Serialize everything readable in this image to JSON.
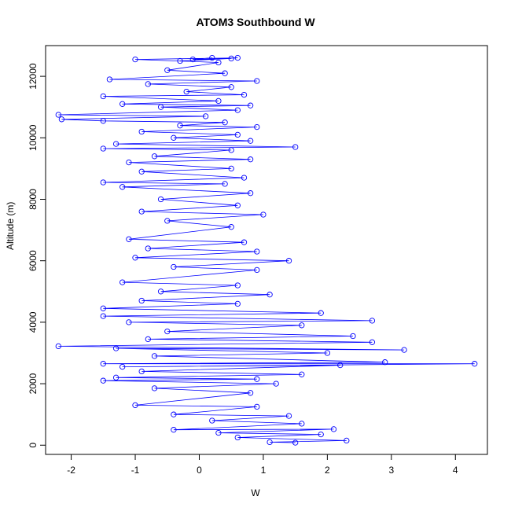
{
  "chart_data": {
    "type": "line",
    "title": "ATOM3 Southbound W",
    "xlabel": "W",
    "ylabel": "Altitude (m)",
    "xlim": [
      -2.4,
      4.5
    ],
    "ylim": [
      -300,
      13000
    ],
    "xticks": [
      "-2",
      "-1",
      "0",
      "1",
      "2",
      "3",
      "4"
    ],
    "yticks": [
      "0",
      "2000",
      "4000",
      "6000",
      "8000",
      "10000",
      "12000"
    ],
    "series": [
      {
        "color": "#0000ff",
        "marker": "open-circle",
        "points": [
          [
            0.2,
            12600
          ],
          [
            -0.1,
            12550
          ],
          [
            0.5,
            12580
          ],
          [
            -0.3,
            12500
          ],
          [
            0.6,
            12600
          ],
          [
            -1.0,
            12550
          ],
          [
            0.3,
            12450
          ],
          [
            -0.5,
            12200
          ],
          [
            0.4,
            12100
          ],
          [
            -1.4,
            11900
          ],
          [
            0.9,
            11850
          ],
          [
            -0.8,
            11750
          ],
          [
            0.5,
            11650
          ],
          [
            -0.2,
            11500
          ],
          [
            0.7,
            11400
          ],
          [
            -1.5,
            11350
          ],
          [
            0.3,
            11200
          ],
          [
            -1.2,
            11100
          ],
          [
            0.8,
            11050
          ],
          [
            -0.6,
            11000
          ],
          [
            0.6,
            10900
          ],
          [
            -2.2,
            10750
          ],
          [
            0.1,
            10700
          ],
          [
            -2.15,
            10600
          ],
          [
            -1.5,
            10550
          ],
          [
            0.4,
            10500
          ],
          [
            -0.3,
            10400
          ],
          [
            0.9,
            10350
          ],
          [
            -0.9,
            10200
          ],
          [
            0.6,
            10100
          ],
          [
            -0.4,
            10000
          ],
          [
            0.8,
            9900
          ],
          [
            -1.3,
            9800
          ],
          [
            1.5,
            9700
          ],
          [
            -1.5,
            9650
          ],
          [
            0.5,
            9600
          ],
          [
            -0.7,
            9400
          ],
          [
            0.8,
            9300
          ],
          [
            -1.1,
            9200
          ],
          [
            0.5,
            9000
          ],
          [
            -0.9,
            8900
          ],
          [
            0.7,
            8700
          ],
          [
            -1.5,
            8550
          ],
          [
            0.4,
            8500
          ],
          [
            -1.2,
            8400
          ],
          [
            0.8,
            8200
          ],
          [
            -0.6,
            8000
          ],
          [
            0.6,
            7800
          ],
          [
            -0.9,
            7600
          ],
          [
            1.0,
            7500
          ],
          [
            -0.5,
            7300
          ],
          [
            0.5,
            7100
          ],
          [
            -1.1,
            6700
          ],
          [
            0.7,
            6600
          ],
          [
            -0.8,
            6400
          ],
          [
            0.9,
            6300
          ],
          [
            -1.0,
            6100
          ],
          [
            1.4,
            6000
          ],
          [
            -0.4,
            5800
          ],
          [
            0.9,
            5700
          ],
          [
            -1.2,
            5300
          ],
          [
            0.6,
            5200
          ],
          [
            -0.6,
            5000
          ],
          [
            1.1,
            4900
          ],
          [
            -0.9,
            4700
          ],
          [
            0.6,
            4600
          ],
          [
            -1.5,
            4450
          ],
          [
            1.9,
            4300
          ],
          [
            -1.5,
            4200
          ],
          [
            2.7,
            4050
          ],
          [
            -1.1,
            4000
          ],
          [
            1.6,
            3900
          ],
          [
            -0.5,
            3700
          ],
          [
            2.4,
            3550
          ],
          [
            -0.8,
            3450
          ],
          [
            2.7,
            3350
          ],
          [
            -2.2,
            3220
          ],
          [
            3.2,
            3100
          ],
          [
            -1.3,
            3150
          ],
          [
            2.0,
            3000
          ],
          [
            -0.7,
            2900
          ],
          [
            2.9,
            2700
          ],
          [
            -1.5,
            2650
          ],
          [
            4.3,
            2650
          ],
          [
            -1.2,
            2550
          ],
          [
            2.2,
            2600
          ],
          [
            -0.9,
            2400
          ],
          [
            1.6,
            2300
          ],
          [
            -1.3,
            2200
          ],
          [
            0.9,
            2150
          ],
          [
            -1.5,
            2100
          ],
          [
            1.2,
            2000
          ],
          [
            -0.7,
            1850
          ],
          [
            0.8,
            1700
          ],
          [
            -1.0,
            1300
          ],
          [
            0.9,
            1250
          ],
          [
            -0.4,
            1000
          ],
          [
            1.4,
            950
          ],
          [
            0.2,
            800
          ],
          [
            1.6,
            700
          ],
          [
            -0.4,
            500
          ],
          [
            2.1,
            520
          ],
          [
            0.3,
            400
          ],
          [
            1.9,
            350
          ],
          [
            0.6,
            250
          ],
          [
            2.3,
            150
          ],
          [
            1.1,
            100
          ],
          [
            1.5,
            80
          ]
        ]
      }
    ]
  }
}
